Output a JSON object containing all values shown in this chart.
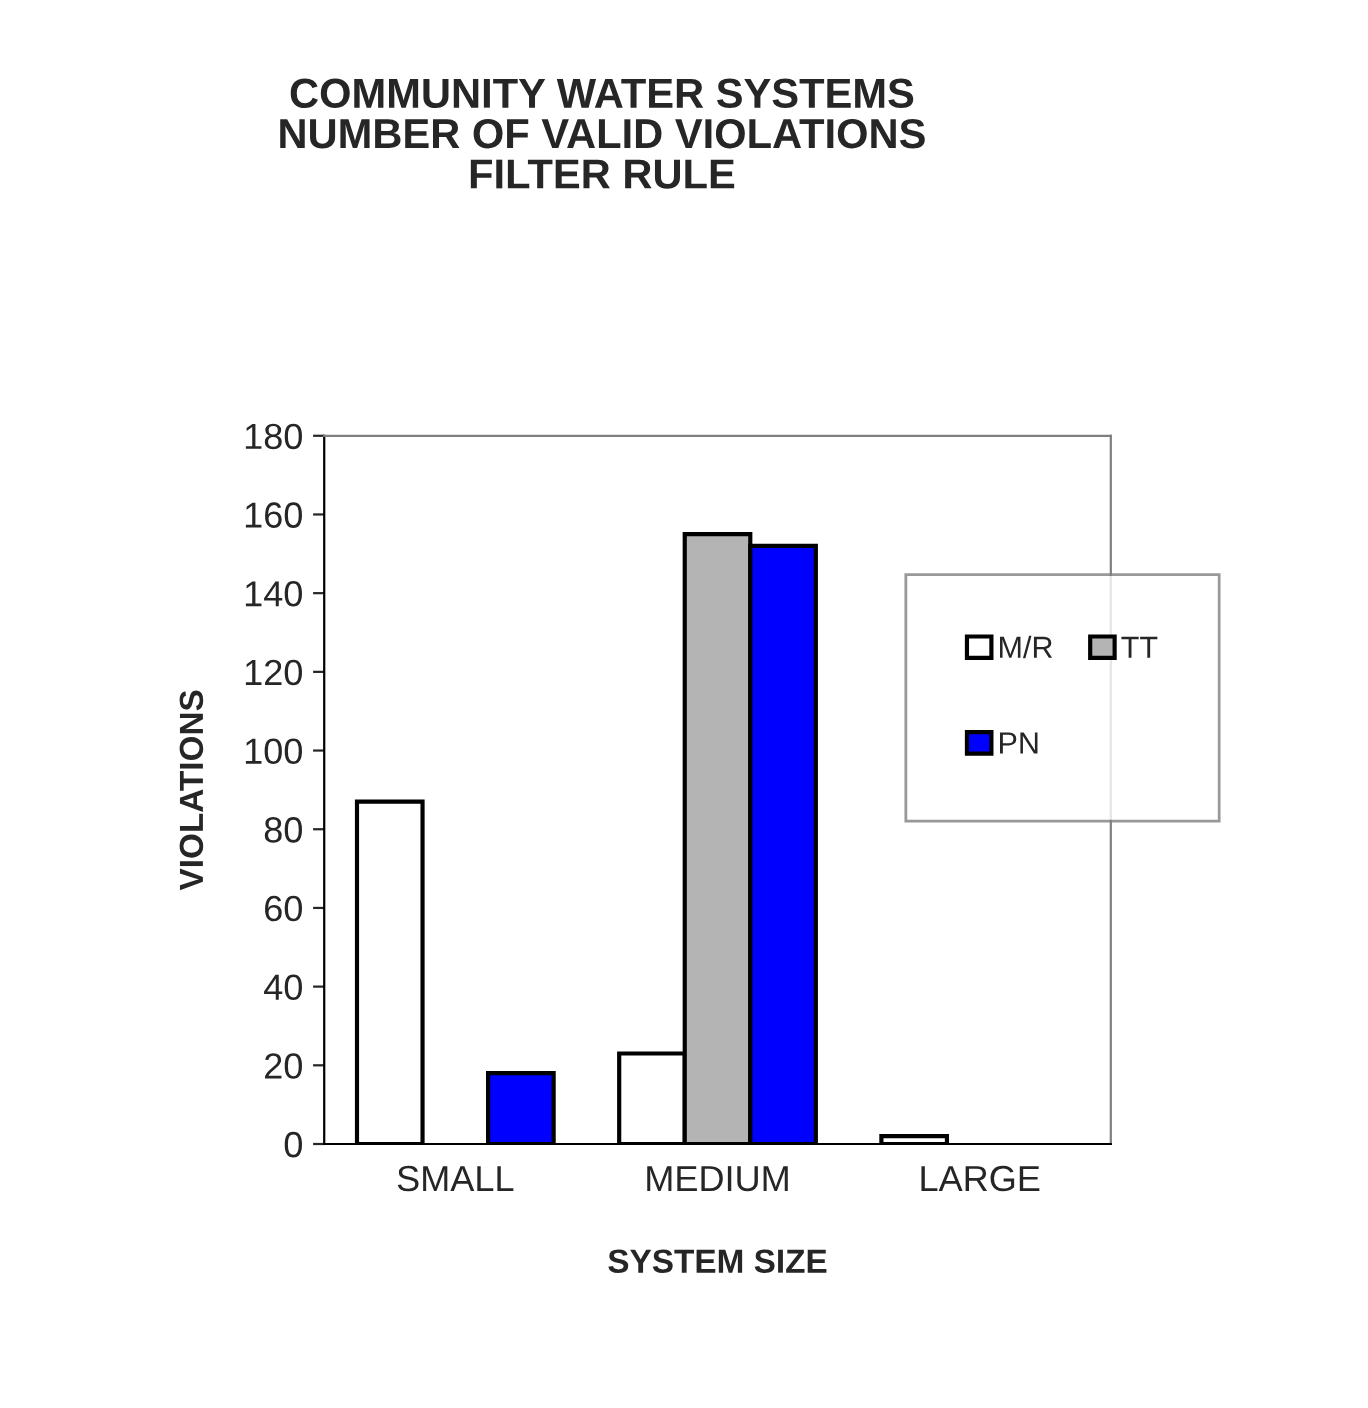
{
  "chart_data": {
    "type": "bar",
    "title": "COMMUNITY WATER SYSTEMS\nNUMBER OF VALID VIOLATIONS\nFILTER RULE",
    "xlabel": "SYSTEM SIZE",
    "ylabel": "VIOLATIONS",
    "categories": [
      "SMALL",
      "MEDIUM",
      "LARGE"
    ],
    "series": [
      {
        "name": "M/R",
        "color": "#ffffff",
        "values": [
          87,
          23,
          2
        ]
      },
      {
        "name": "TT",
        "color": "#b4b4b4",
        "values": [
          0,
          155,
          0
        ]
      },
      {
        "name": "PN",
        "color": "#0000ff",
        "values": [
          18,
          152,
          0
        ]
      }
    ],
    "ylim": [
      0,
      180
    ],
    "yticks": [
      0,
      20,
      40,
      60,
      80,
      100,
      120,
      140,
      160,
      180
    ],
    "grid": false,
    "legend": "right"
  }
}
